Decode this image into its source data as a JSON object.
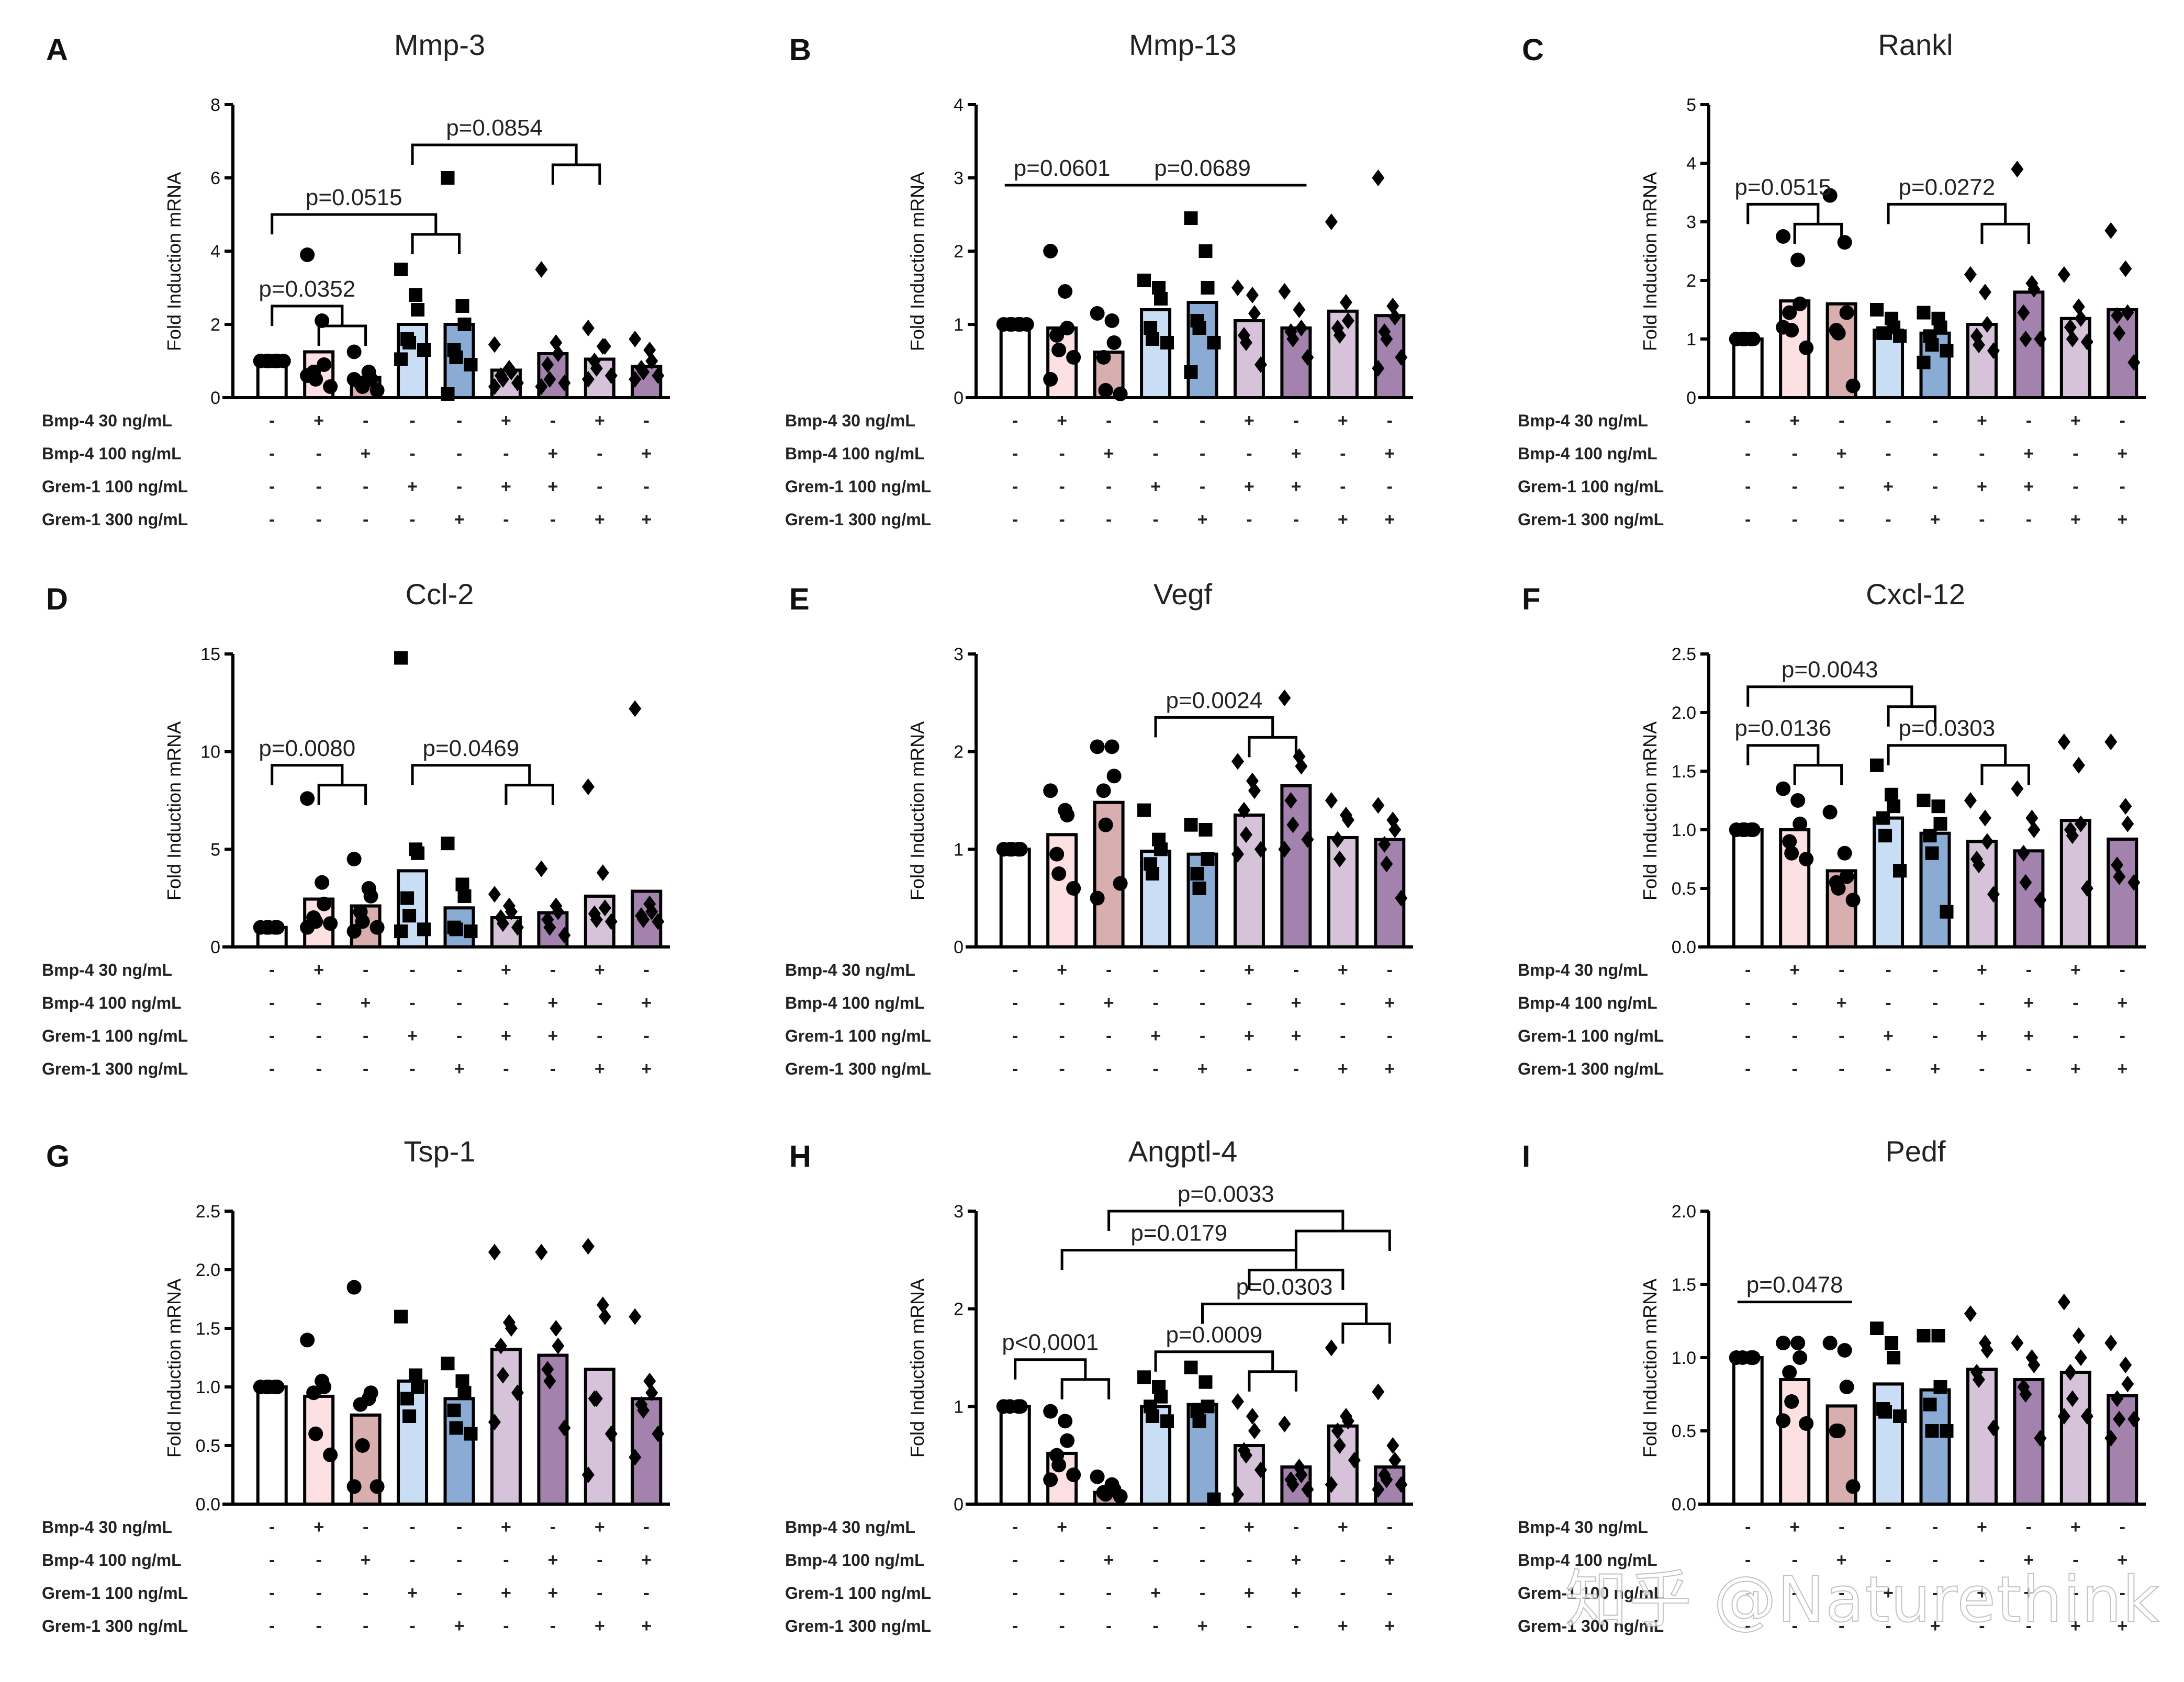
{
  "figure": {
    "conditions": {
      "row_labels": [
        "Bmp-4 30 ng/mL",
        "Bmp-4 100 ng/mL",
        "Grem-1 100 ng/mL",
        "Grem-1 300 ng/mL"
      ],
      "matrix": [
        [
          "-",
          "+",
          "-",
          "-",
          "-",
          "+",
          "-",
          "+",
          "-"
        ],
        [
          "-",
          "-",
          "+",
          "-",
          "-",
          "-",
          "+",
          "-",
          "+"
        ],
        [
          "-",
          "-",
          "-",
          "+",
          "-",
          "+",
          "+",
          "-",
          "-"
        ],
        [
          "-",
          "-",
          "-",
          "-",
          "+",
          "-",
          "-",
          "+",
          "+"
        ]
      ]
    },
    "bar_colors": [
      "#ffffff",
      "#fce0e2",
      "#d8aeae",
      "#c9ddf5",
      "#8aabd4",
      "#d6c3d9",
      "#a383ad",
      "#d6c3d9",
      "#a383ad"
    ],
    "marker_shapes": [
      "circle",
      "circle",
      "circle",
      "square",
      "square",
      "diamond",
      "diamond",
      "diamond",
      "diamond"
    ],
    "watermark": "知乎 @Naturethink"
  },
  "chart_data": [
    {
      "panel": "A",
      "type": "bar",
      "title": "Mmp-3",
      "ylabel": "Fold Induction mRNA",
      "ylim": [
        0,
        8
      ],
      "yticks": [
        0,
        2,
        4,
        6,
        8
      ],
      "ytick_labels": [
        "0",
        "2",
        "4",
        "6",
        "8"
      ],
      "values": [
        1.0,
        1.25,
        0.55,
        2.0,
        2.0,
        0.75,
        1.2,
        1.05,
        0.85
      ],
      "points": [
        [
          1.0,
          1.0,
          1.0,
          1.0,
          1.0,
          1.0,
          1.0
        ],
        [
          3.9,
          2.1,
          0.9,
          0.7,
          0.5,
          0.3,
          0.6
        ],
        [
          1.25,
          0.7,
          0.5,
          0.4,
          0.3,
          0.2,
          0.5
        ],
        [
          3.5,
          2.8,
          2.4,
          1.6,
          1.5,
          1.3,
          1.05
        ],
        [
          6.0,
          2.5,
          2.0,
          1.3,
          1.1,
          0.9,
          0.1
        ],
        [
          1.45,
          0.8,
          0.7,
          0.6,
          0.5,
          0.4,
          0.3
        ],
        [
          3.5,
          1.5,
          1.2,
          0.9,
          0.5,
          0.4,
          0.3
        ],
        [
          1.9,
          1.4,
          1.4,
          1.0,
          0.8,
          0.6,
          0.5
        ],
        [
          1.6,
          1.3,
          1.0,
          0.8,
          0.7,
          0.6,
          0.5
        ]
      ],
      "annotations": [
        {
          "label": "p=0.0352",
          "from": 0,
          "to": [
            1,
            2
          ],
          "level": 2.5
        },
        {
          "label": "p=0.0515",
          "from": 0,
          "to": [
            3,
            4
          ],
          "level": 5.0
        },
        {
          "label": "p=0.0854",
          "from": 3,
          "to": [
            6,
            7
          ],
          "level": 6.9
        }
      ]
    },
    {
      "panel": "B",
      "type": "bar",
      "title": "Mmp-13",
      "ylabel": "Fold Induction mRNA",
      "ylim": [
        0,
        4
      ],
      "yticks": [
        0,
        1,
        2,
        3,
        4
      ],
      "ytick_labels": [
        "0",
        "1",
        "2",
        "3",
        "4"
      ],
      "values": [
        1.0,
        0.95,
        0.62,
        1.2,
        1.3,
        1.05,
        0.95,
        1.18,
        1.12
      ],
      "points": [
        [
          1.0,
          1.0,
          1.0,
          1.0,
          1.0,
          1.0
        ],
        [
          2.0,
          1.45,
          0.95,
          0.85,
          0.65,
          0.55,
          0.25
        ],
        [
          1.15,
          1.05,
          0.75,
          0.55,
          0.1,
          0.05
        ],
        [
          1.6,
          1.5,
          1.35,
          0.95,
          0.8,
          0.75
        ],
        [
          2.45,
          2.0,
          1.5,
          1.05,
          0.95,
          0.75,
          0.35
        ],
        [
          1.5,
          1.4,
          1.15,
          0.85,
          0.75,
          0.45
        ],
        [
          1.45,
          1.2,
          0.95,
          0.9,
          0.8,
          0.55
        ],
        [
          2.4,
          1.3,
          1.05,
          0.95,
          0.85
        ],
        [
          3.0,
          1.25,
          1.1,
          0.9,
          0.8,
          0.55,
          0.4
        ]
      ],
      "annotations": [
        {
          "label": "p=0.0601",
          "line": [
            0,
            2
          ],
          "level": 2.9
        },
        {
          "label": "p=0.0689",
          "line": [
            2,
            6
          ],
          "level": 2.9
        }
      ]
    },
    {
      "panel": "C",
      "type": "bar",
      "title": "Rankl",
      "ylabel": "Fold Induction mRNA",
      "ylim": [
        0,
        5
      ],
      "yticks": [
        0,
        1,
        2,
        3,
        4,
        5
      ],
      "ytick_labels": [
        "0",
        "1",
        "2",
        "3",
        "4",
        "5"
      ],
      "values": [
        1.0,
        1.65,
        1.6,
        1.15,
        1.1,
        1.25,
        1.8,
        1.35,
        1.5
      ],
      "points": [
        [
          1.0,
          1.0,
          1.0,
          1.0,
          1.0
        ],
        [
          2.75,
          2.35,
          1.6,
          1.45,
          1.15,
          0.85,
          1.2
        ],
        [
          3.45,
          2.65,
          1.45,
          1.15,
          1.1,
          0.2
        ],
        [
          1.5,
          1.35,
          1.2,
          1.1,
          1.1,
          1.05
        ],
        [
          1.45,
          1.35,
          1.2,
          1.05,
          0.9,
          0.8,
          0.6
        ],
        [
          2.1,
          1.8,
          1.25,
          1.05,
          0.9,
          0.8
        ],
        [
          3.9,
          1.95,
          1.85,
          1.45,
          1.0,
          1.0
        ],
        [
          2.1,
          1.55,
          1.35,
          1.2,
          1.0,
          0.95
        ],
        [
          2.85,
          2.2,
          1.45,
          1.4,
          1.1,
          0.6
        ]
      ],
      "annotations": [
        {
          "label": "p=0.0515",
          "from": 0,
          "to": [
            1,
            2
          ],
          "level": 3.3
        },
        {
          "label": "p=0.0272",
          "from": 3,
          "to": [
            5,
            6
          ],
          "level": 3.3
        }
      ]
    },
    {
      "panel": "D",
      "type": "bar",
      "title": "Ccl-2",
      "ylabel": "Fold Induction mRNA",
      "ylim": [
        0,
        15
      ],
      "yticks": [
        0,
        5,
        10,
        15
      ],
      "ytick_labels": [
        "0",
        "5",
        "10",
        "15"
      ],
      "values": [
        1.0,
        2.45,
        2.1,
        3.9,
        2.0,
        1.5,
        1.75,
        2.6,
        2.85
      ],
      "points": [
        [
          1.0,
          1.0,
          1.0,
          1.0,
          1.0
        ],
        [
          7.6,
          3.3,
          2.2,
          1.5,
          1.3,
          1.2,
          1.0
        ],
        [
          4.5,
          3.0,
          2.6,
          1.8,
          1.3,
          1.0,
          0.8
        ],
        [
          14.8,
          5.0,
          4.8,
          2.5,
          1.6,
          0.9,
          0.8
        ],
        [
          5.3,
          3.2,
          2.6,
          1.0,
          0.9,
          0.8
        ],
        [
          2.7,
          2.1,
          1.8,
          1.5,
          1.2,
          1.0
        ],
        [
          4.0,
          2.1,
          1.8,
          1.4,
          1.0,
          0.6
        ],
        [
          8.2,
          3.8,
          2.0,
          1.7,
          1.4,
          1.3
        ],
        [
          12.2,
          2.2,
          1.8,
          1.6,
          1.4,
          1.3
        ]
      ],
      "annotations": [
        {
          "label": "p=0.0080",
          "from": 0,
          "to": [
            1,
            2
          ],
          "level": 9.3
        },
        {
          "label": "p=0.0469",
          "from": 3,
          "to": [
            5,
            6
          ],
          "level": 9.3
        }
      ]
    },
    {
      "panel": "E",
      "type": "bar",
      "title": "Vegf",
      "ylabel": "Fold Induction mRNA",
      "ylim": [
        0,
        3
      ],
      "yticks": [
        0,
        1,
        2,
        3
      ],
      "ytick_labels": [
        "0",
        "1",
        "2",
        "3"
      ],
      "values": [
        1.0,
        1.15,
        1.48,
        0.98,
        0.95,
        1.35,
        1.65,
        1.12,
        1.1
      ],
      "points": [
        [
          1.0,
          1.0,
          1.0,
          1.0,
          1.0
        ],
        [
          1.6,
          1.4,
          1.35,
          0.95,
          0.75,
          0.6
        ],
        [
          2.05,
          2.05,
          1.75,
          1.6,
          1.25,
          0.65,
          0.5
        ],
        [
          1.4,
          1.1,
          1.0,
          0.85,
          0.75
        ],
        [
          1.25,
          1.2,
          0.9,
          0.75,
          0.6
        ],
        [
          1.9,
          1.7,
          1.6,
          1.4,
          1.15,
          1.0,
          0.95
        ],
        [
          2.55,
          1.95,
          1.85,
          1.5,
          1.25,
          1.1,
          1.0
        ],
        [
          1.5,
          1.35,
          1.3,
          1.1,
          0.9
        ],
        [
          1.45,
          1.3,
          1.2,
          1.05,
          0.85,
          0.5
        ]
      ],
      "annotations": [
        {
          "label": "p=0.0024",
          "from": 3,
          "to": [
            5,
            6
          ],
          "level": 2.35
        }
      ]
    },
    {
      "panel": "F",
      "type": "bar",
      "title": "Cxcl-12",
      "ylabel": "Fold Induction mRNA",
      "ylim": [
        0,
        2.5
      ],
      "yticks": [
        0,
        0.5,
        1.0,
        1.5,
        2.0,
        2.5
      ],
      "ytick_labels": [
        "0.0",
        "0.5",
        "1.0",
        "1.5",
        "2.0",
        "2.5"
      ],
      "values": [
        1.0,
        1.0,
        0.65,
        1.1,
        0.97,
        0.9,
        0.82,
        1.08,
        0.92
      ],
      "points": [
        [
          1.0,
          1.0,
          1.0,
          1.0,
          1.0
        ],
        [
          1.35,
          1.25,
          1.05,
          0.9,
          0.8,
          0.75
        ],
        [
          1.15,
          0.8,
          0.6,
          0.55,
          0.5,
          0.4
        ],
        [
          1.55,
          1.3,
          1.2,
          1.1,
          0.95,
          0.65
        ],
        [
          1.25,
          1.2,
          1.05,
          0.95,
          0.8,
          0.3
        ],
        [
          1.25,
          1.1,
          0.9,
          0.75,
          0.7,
          0.45
        ],
        [
          1.35,
          1.1,
          1.0,
          0.8,
          0.55,
          0.4
        ],
        [
          1.75,
          1.55,
          1.05,
          1.0,
          0.95,
          0.5
        ],
        [
          1.75,
          1.2,
          1.05,
          0.7,
          0.6,
          0.55
        ]
      ],
      "annotations": [
        {
          "label": "p=0.0136",
          "from": 0,
          "to": [
            1,
            2
          ],
          "level": 1.72
        },
        {
          "label": "p=0.0043",
          "from": 0,
          "to": [
            3,
            4
          ],
          "level": 2.22
        },
        {
          "label": "p=0.0303",
          "from": 3,
          "to": [
            5,
            6
          ],
          "level": 1.72
        }
      ]
    },
    {
      "panel": "G",
      "type": "bar",
      "title": "Tsp-1",
      "ylabel": "Fold Induction mRNA",
      "ylim": [
        0,
        2.5
      ],
      "yticks": [
        0,
        0.5,
        1.0,
        1.5,
        2.0,
        2.5
      ],
      "ytick_labels": [
        "0.0",
        "0.5",
        "1.0",
        "1.5",
        "2.0",
        "2.5"
      ],
      "values": [
        1.0,
        0.92,
        0.76,
        1.05,
        0.9,
        1.32,
        1.27,
        1.15,
        0.9
      ],
      "points": [
        [
          1.0,
          1.0,
          1.0,
          1.0,
          1.0
        ],
        [
          1.4,
          1.05,
          1.0,
          0.95,
          0.6,
          0.42
        ],
        [
          1.85,
          0.9,
          0.95,
          0.85,
          0.5,
          0.15,
          0.15
        ],
        [
          1.6,
          1.1,
          1.0,
          0.9,
          0.75
        ],
        [
          1.2,
          1.05,
          0.95,
          0.8,
          0.65,
          0.6
        ],
        [
          2.15,
          1.55,
          1.5,
          1.35,
          1.1,
          0.95,
          0.7
        ],
        [
          2.15,
          1.5,
          1.35,
          1.15,
          1.05,
          0.65
        ],
        [
          2.2,
          1.7,
          1.6,
          0.9,
          0.9,
          0.6,
          0.25
        ],
        [
          1.6,
          1.05,
          0.95,
          0.85,
          0.8,
          0.6,
          0.4
        ]
      ],
      "annotations": []
    },
    {
      "panel": "H",
      "type": "bar",
      "title": "Angptl-4",
      "ylabel": "Fold Induction mRNA",
      "ylim": [
        0,
        3
      ],
      "yticks": [
        0,
        1,
        2,
        3
      ],
      "ytick_labels": [
        "0",
        "1",
        "2",
        "3"
      ],
      "values": [
        1.0,
        0.52,
        0.12,
        1.0,
        1.02,
        0.6,
        0.38,
        0.8,
        0.38
      ],
      "points": [
        [
          1.0,
          1.0,
          1.0,
          1.0
        ],
        [
          0.95,
          0.85,
          0.65,
          0.5,
          0.4,
          0.3,
          0.25
        ],
        [
          0.28,
          0.2,
          0.15,
          0.12,
          0.1,
          0.08
        ],
        [
          1.3,
          1.2,
          1.1,
          1.0,
          0.9,
          0.85
        ],
        [
          1.4,
          1.25,
          1.0,
          0.95,
          0.85,
          0.05
        ],
        [
          1.05,
          0.9,
          0.75,
          0.55,
          0.5,
          0.35,
          0.1
        ],
        [
          0.82,
          0.38,
          0.3,
          0.25,
          0.2,
          0.15
        ],
        [
          1.6,
          0.9,
          0.85,
          0.75,
          0.6,
          0.45,
          0.2
        ],
        [
          1.15,
          0.6,
          0.45,
          0.3,
          0.25,
          0.2,
          0.15
        ]
      ],
      "annotations": [
        {
          "label": "p<0,0001",
          "from": 0,
          "to": [
            1,
            2
          ],
          "level": 1.48
        },
        {
          "label": "p=0.0009",
          "from": 3,
          "to": [
            5,
            6
          ],
          "level": 1.56
        },
        {
          "label": "p=0.0303",
          "from": 4,
          "to": [
            7,
            8
          ],
          "level": 2.05
        },
        {
          "label": "p=0.0179",
          "from": 1,
          "to": [
            5,
            7
          ],
          "level": 2.6
        },
        {
          "label": "p=0.0033",
          "from": 2,
          "to": [
            6,
            8
          ],
          "level": 3.0
        }
      ]
    },
    {
      "panel": "I",
      "type": "bar",
      "title": "Pedf",
      "ylabel": "Fold Induction mRNA",
      "ylim": [
        0,
        2.0
      ],
      "yticks": [
        0,
        0.5,
        1.0,
        1.5,
        2.0
      ],
      "ytick_labels": [
        "0.0",
        "0.5",
        "1.0",
        "1.5",
        "2.0"
      ],
      "values": [
        1.0,
        0.85,
        0.67,
        0.82,
        0.78,
        0.92,
        0.85,
        0.9,
        0.74
      ],
      "points": [
        [
          1.0,
          1.0,
          1.0,
          1.0
        ],
        [
          1.1,
          1.1,
          1.0,
          0.9,
          0.7,
          0.55,
          0.57
        ],
        [
          1.1,
          1.05,
          0.8,
          0.5,
          0.5,
          0.12
        ],
        [
          1.2,
          1.1,
          1.0,
          0.65,
          0.63,
          0.6
        ],
        [
          1.15,
          1.15,
          0.8,
          0.68,
          0.5,
          0.5
        ],
        [
          1.3,
          1.1,
          1.05,
          0.9,
          0.85,
          0.52
        ],
        [
          1.1,
          1.0,
          0.95,
          0.8,
          0.75,
          0.45
        ],
        [
          1.38,
          1.15,
          1.0,
          0.9,
          0.72,
          0.6,
          0.6
        ],
        [
          1.1,
          0.95,
          0.82,
          0.72,
          0.58,
          0.58,
          0.45
        ]
      ],
      "annotations": [
        {
          "label": "p=0.0478",
          "line": [
            0,
            2
          ],
          "level": 1.38
        }
      ]
    }
  ]
}
